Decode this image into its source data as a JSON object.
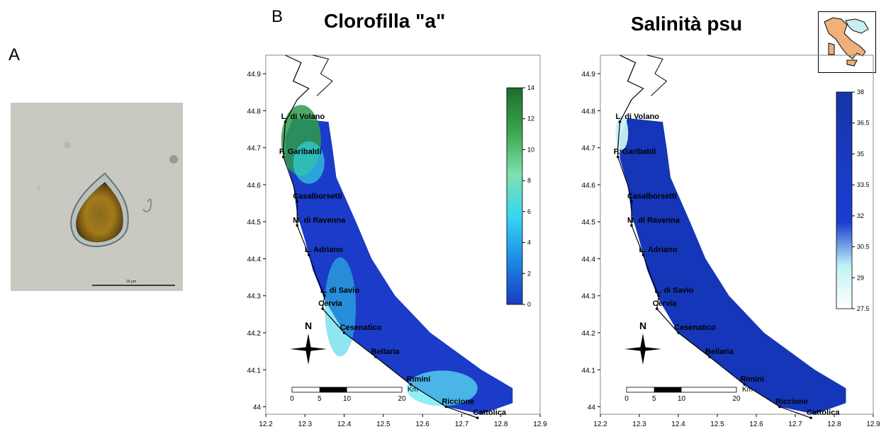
{
  "panel_a": {
    "letter": "A",
    "scale_bar_label": "20 µm"
  },
  "panel_b": {
    "letter": "B"
  },
  "maps": [
    {
      "title": "Clorofilla \"a\"",
      "colorbar": {
        "ticks": [
          "0",
          "2",
          "4",
          "6",
          "8",
          "10",
          "12",
          "14"
        ],
        "colors": [
          "#1a3cc0",
          "#1b88e6",
          "#35d6f0",
          "#7ee0b0",
          "#3aa64a",
          "#1c6e2e"
        ]
      },
      "x_ticks": [
        "12.2",
        "12.3",
        "12.4",
        "12.5",
        "12.6",
        "12.7",
        "12.8",
        "12.9"
      ],
      "y_ticks": [
        "44",
        "44.1",
        "44.2",
        "44.3",
        "44.4",
        "44.5",
        "44.6",
        "44.7",
        "44.8",
        "44.9"
      ],
      "places": [
        "L. di Volano",
        "P. Garibaldi",
        "Casalborsetti",
        "M. di Ravenna",
        "L. Adriano",
        "L. di Savio",
        "Cervia",
        "Cesenatico",
        "Bellaria",
        "Rimini",
        "Riccione",
        "Cattolica"
      ],
      "north": "N",
      "scale": {
        "ticks": [
          "0",
          "5",
          "10",
          "20"
        ],
        "unit": "Km"
      }
    },
    {
      "title": "Salinità psu",
      "colorbar": {
        "ticks": [
          "27.5",
          "29",
          "30.5",
          "32",
          "33.5",
          "35",
          "36.5",
          "38"
        ],
        "colors": [
          "#ffffff",
          "#bff2f5",
          "#1a3cd0",
          "#1a3cc8",
          "#1838b8",
          "#1535a8"
        ]
      },
      "x_ticks": [
        "12.2",
        "12.3",
        "12.4",
        "12.5",
        "12.6",
        "12.7",
        "12.8",
        "12.9"
      ],
      "y_ticks": [
        "44",
        "44.1",
        "44.2",
        "44.3",
        "44.4",
        "44.5",
        "44.6",
        "44.7",
        "44.8",
        "44.9"
      ],
      "places": [
        "L. di Volano",
        "P. Garibaldi",
        "Casalborsetti",
        "M. di Ravenna",
        "L. Adriano",
        "L. di Savio",
        "Cervia",
        "Cesenatico",
        "Bellaria",
        "Rimini",
        "Riccione",
        "Cattolica"
      ],
      "north": "N",
      "scale": {
        "ticks": [
          "0",
          "5",
          "10",
          "20"
        ],
        "unit": "Km"
      }
    }
  ]
}
